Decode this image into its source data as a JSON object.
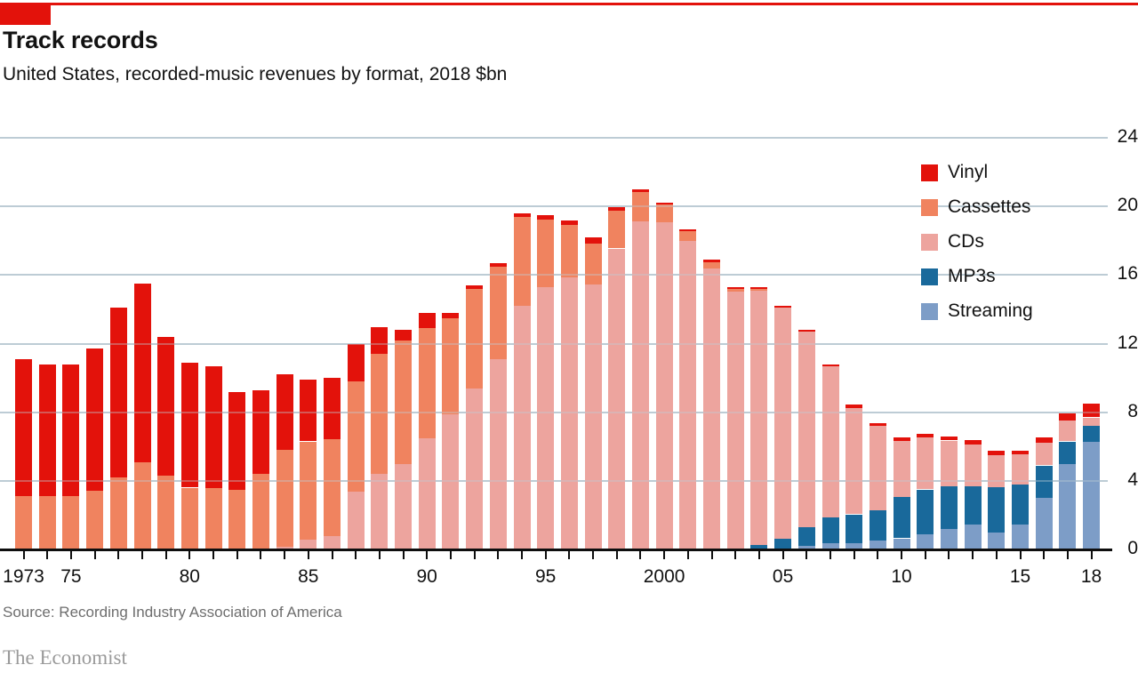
{
  "header": {
    "title": "Track records",
    "subtitle": "United States, recorded-music revenues by format, 2018 $bn"
  },
  "style": {
    "accent_red": "#e3120b",
    "gridline_color": "#bdccd6",
    "axis_color": "#0e0e0e"
  },
  "chart_data": {
    "type": "bar",
    "stacked": true,
    "title": "Track records",
    "subtitle": "United States, recorded-music revenues by format, 2018 $bn",
    "ylabel": "",
    "xlabel": "",
    "ylim": [
      0,
      24
    ],
    "yticks": [
      0,
      4,
      8,
      12,
      16,
      20,
      24
    ],
    "grid": "horizontal",
    "legend_position": "inside-upper-right",
    "categories": [
      1973,
      1974,
      1975,
      1976,
      1977,
      1978,
      1979,
      1980,
      1981,
      1982,
      1983,
      1984,
      1985,
      1986,
      1987,
      1988,
      1989,
      1990,
      1991,
      1992,
      1993,
      1994,
      1995,
      1996,
      1997,
      1998,
      1999,
      2000,
      2001,
      2002,
      2003,
      2004,
      2005,
      2006,
      2007,
      2008,
      2009,
      2010,
      2011,
      2012,
      2013,
      2014,
      2015,
      2016,
      2017,
      2018
    ],
    "xtick_labels": [
      {
        "label": "1973",
        "index": 0
      },
      {
        "label": "75",
        "index": 2
      },
      {
        "label": "80",
        "index": 7
      },
      {
        "label": "85",
        "index": 12
      },
      {
        "label": "90",
        "index": 17
      },
      {
        "label": "95",
        "index": 22
      },
      {
        "label": "2000",
        "index": 27
      },
      {
        "label": "05",
        "index": 32
      },
      {
        "label": "10",
        "index": 37
      },
      {
        "label": "15",
        "index": 42
      },
      {
        "label": "18",
        "index": 45
      }
    ],
    "series": [
      {
        "name": "Vinyl",
        "color": "#e3120b",
        "values": [
          8.0,
          7.7,
          7.7,
          8.3,
          9.9,
          10.4,
          8.1,
          7.3,
          7.1,
          5.7,
          4.9,
          4.4,
          3.6,
          3.55,
          2.2,
          1.55,
          0.6,
          0.9,
          0.3,
          0.2,
          0.2,
          0.2,
          0.25,
          0.3,
          0.35,
          0.2,
          0.15,
          0.1,
          0.1,
          0.15,
          0.1,
          0.1,
          0.1,
          0.1,
          0.1,
          0.2,
          0.15,
          0.2,
          0.2,
          0.25,
          0.3,
          0.25,
          0.2,
          0.35,
          0.45,
          0.8
        ]
      },
      {
        "name": "Cassettes",
        "color": "#f0835f",
        "values": [
          3.1,
          3.1,
          3.1,
          3.4,
          4.2,
          5.1,
          4.3,
          3.6,
          3.6,
          3.5,
          4.4,
          5.65,
          5.75,
          5.65,
          6.4,
          7.0,
          7.2,
          6.4,
          5.6,
          5.8,
          5.4,
          5.2,
          3.95,
          3.05,
          2.4,
          2.2,
          1.7,
          1.0,
          0.55,
          0.35,
          0.15,
          0.1,
          0,
          0,
          0,
          0,
          0,
          0,
          0,
          0,
          0,
          0,
          0,
          0,
          0,
          0
        ]
      },
      {
        "name": "CDs",
        "color": "#eda49e",
        "values": [
          0,
          0,
          0,
          0,
          0,
          0,
          0,
          0,
          0,
          0,
          0,
          0.15,
          0.55,
          0.8,
          3.4,
          4.4,
          5.0,
          6.5,
          7.9,
          9.4,
          11.1,
          14.2,
          15.3,
          15.85,
          15.45,
          17.55,
          19.15,
          19.1,
          18.0,
          16.4,
          15.05,
          14.85,
          13.5,
          11.4,
          8.85,
          6.2,
          4.9,
          3.3,
          3.05,
          2.65,
          2.4,
          1.85,
          1.75,
          1.3,
          1.2,
          0.5
        ]
      },
      {
        "name": "MP3s",
        "color": "#19699b",
        "values": [
          0,
          0,
          0,
          0,
          0,
          0,
          0,
          0,
          0,
          0,
          0,
          0,
          0,
          0,
          0,
          0,
          0,
          0,
          0,
          0,
          0,
          0,
          0,
          0,
          0,
          0,
          0,
          0,
          0,
          0,
          0,
          0.25,
          0.6,
          1.1,
          1.5,
          1.7,
          1.8,
          2.4,
          2.6,
          2.5,
          2.25,
          2.65,
          2.35,
          1.9,
          1.3,
          0.95
        ]
      },
      {
        "name": "Streaming",
        "color": "#7d9dc7",
        "values": [
          0,
          0,
          0,
          0,
          0,
          0,
          0,
          0,
          0,
          0,
          0,
          0,
          0,
          0,
          0,
          0,
          0,
          0,
          0,
          0,
          0,
          0,
          0,
          0,
          0,
          0,
          0,
          0,
          0,
          0,
          0,
          0,
          0,
          0.2,
          0.35,
          0.35,
          0.5,
          0.65,
          0.9,
          1.2,
          1.45,
          1.0,
          1.45,
          3.0,
          5.0,
          6.25
        ]
      }
    ]
  },
  "footer": {
    "source": "Source: Recording Industry Association of America",
    "brand": "The Economist"
  }
}
